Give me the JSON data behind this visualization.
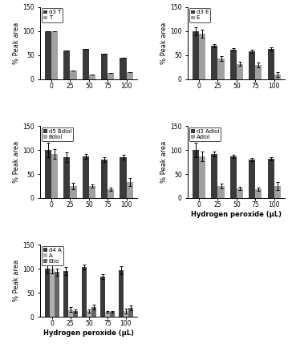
{
  "panels": [
    {
      "legend": [
        "d3 T",
        "T"
      ],
      "colors": [
        "#3a3a3a",
        "#a0a0a0"
      ],
      "x_labels": [
        "0",
        "25",
        "50",
        "75",
        "100"
      ],
      "series1_values": [
        100,
        60,
        63,
        53,
        45
      ],
      "series1_errors": [
        0,
        0,
        0,
        0,
        0
      ],
      "series2_values": [
        100,
        18,
        10,
        13,
        15
      ],
      "series2_errors": [
        0,
        0,
        0,
        0,
        0
      ],
      "ylim": [
        0,
        150
      ],
      "yticks": [
        0,
        50,
        100,
        150
      ],
      "ylabel": "% Peak area",
      "show_xlabel": false,
      "has_three": false
    },
    {
      "legend": [
        "d3 E",
        "E"
      ],
      "colors": [
        "#3a3a3a",
        "#a0a0a0"
      ],
      "x_labels": [
        "0",
        "25",
        "50",
        "75",
        "100"
      ],
      "series1_values": [
        100,
        70,
        62,
        58,
        63
      ],
      "series1_errors": [
        8,
        3,
        3,
        3,
        3
      ],
      "series2_values": [
        95,
        43,
        32,
        30,
        10
      ],
      "series2_errors": [
        8,
        5,
        4,
        5,
        5
      ],
      "ylim": [
        0,
        150
      ],
      "yticks": [
        0,
        50,
        100,
        150
      ],
      "ylabel": "% Peak area",
      "show_xlabel": false,
      "has_three": false
    },
    {
      "legend": [
        "d5 Bdiol",
        "Bdiol"
      ],
      "colors": [
        "#3a3a3a",
        "#a0a0a0"
      ],
      "x_labels": [
        "0",
        "25",
        "50",
        "75",
        "100"
      ],
      "series1_values": [
        100,
        85,
        87,
        80,
        85
      ],
      "series1_errors": [
        15,
        10,
        5,
        5,
        5
      ],
      "series2_values": [
        92,
        25,
        25,
        18,
        33
      ],
      "series2_errors": [
        10,
        7,
        4,
        3,
        8
      ],
      "ylim": [
        0,
        150
      ],
      "yticks": [
        0,
        50,
        100,
        150
      ],
      "ylabel": "% Peak area",
      "show_xlabel": false,
      "has_three": false
    },
    {
      "legend": [
        "d3 Adiol",
        "Adiol"
      ],
      "colors": [
        "#3a3a3a",
        "#a0a0a0"
      ],
      "x_labels": [
        "0",
        "25",
        "50",
        "75",
        "100"
      ],
      "series1_values": [
        100,
        92,
        87,
        80,
        82
      ],
      "series1_errors": [
        15,
        5,
        3,
        3,
        3
      ],
      "series2_values": [
        87,
        25,
        20,
        18,
        25
      ],
      "series2_errors": [
        10,
        5,
        3,
        3,
        8
      ],
      "ylim": [
        0,
        150
      ],
      "yticks": [
        0,
        50,
        100,
        150
      ],
      "ylabel": "% Peak area",
      "show_xlabel": true,
      "xlabel": "Hydrogen peroxide (μL)",
      "has_three": false
    },
    {
      "legend": [
        "d4 A",
        "A",
        "Etio"
      ],
      "colors": [
        "#3a3a3a",
        "#b0b0b0",
        "#666666"
      ],
      "x_labels": [
        "0",
        "25",
        "50",
        "75",
        "100"
      ],
      "series1_values": [
        100,
        95,
        103,
        83,
        97
      ],
      "series1_errors": [
        10,
        8,
        5,
        5,
        8
      ],
      "series2_values": [
        100,
        15,
        12,
        10,
        12
      ],
      "series2_errors": [
        10,
        5,
        3,
        2,
        5
      ],
      "series3_values": [
        93,
        12,
        20,
        10,
        18
      ],
      "series3_errors": [
        8,
        3,
        5,
        2,
        5
      ],
      "ylim": [
        0,
        150
      ],
      "yticks": [
        0,
        50,
        100,
        150
      ],
      "ylabel": "% Peak area",
      "show_xlabel": true,
      "xlabel": "Hydrogen peroxide (μL)",
      "has_three": true
    }
  ],
  "figure_bgcolor": "#ffffff"
}
